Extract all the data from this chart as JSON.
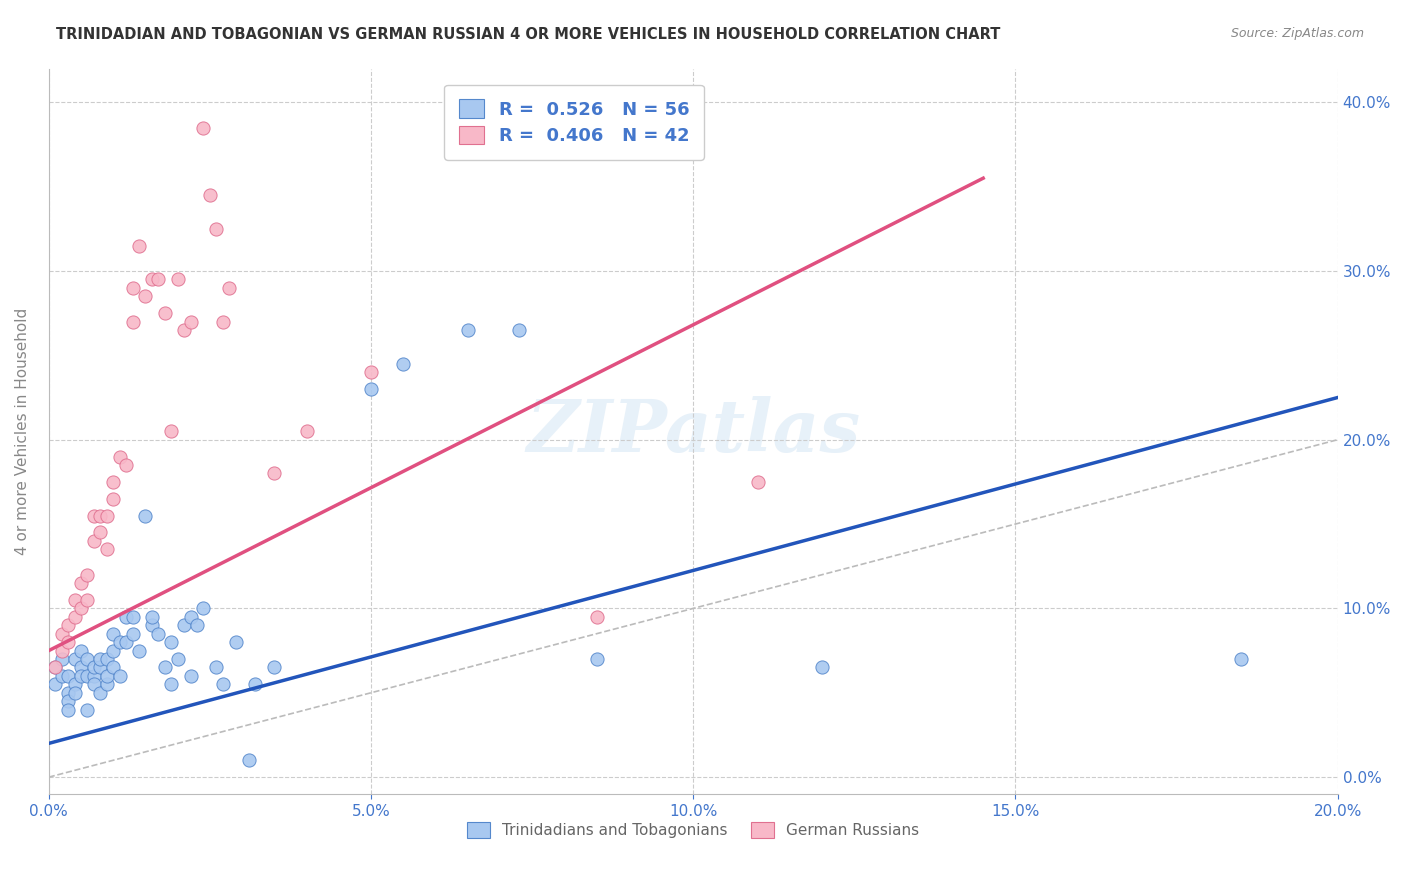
{
  "title": "TRINIDADIAN AND TOBAGONIAN VS GERMAN RUSSIAN 4 OR MORE VEHICLES IN HOUSEHOLD CORRELATION CHART",
  "source": "Source: ZipAtlas.com",
  "ylabel": "4 or more Vehicles in Household",
  "legend_blue_label": "Trinidadians and Tobagonians",
  "legend_pink_label": "German Russians",
  "xlim": [
    0.0,
    0.2
  ],
  "ylim": [
    -0.01,
    0.42
  ],
  "xticks": [
    0.0,
    0.05,
    0.1,
    0.15,
    0.2
  ],
  "yticks": [
    0.0,
    0.1,
    0.2,
    0.3,
    0.4
  ],
  "blue_scatter_color": "#a8c8f0",
  "blue_edge_color": "#5588cc",
  "pink_scatter_color": "#f8b8c8",
  "pink_edge_color": "#e07090",
  "blue_line_color": "#2255bb",
  "pink_line_color": "#e05080",
  "ref_line_color": "#bbbbbb",
  "blue_scatter": [
    [
      0.001,
      0.065
    ],
    [
      0.001,
      0.055
    ],
    [
      0.002,
      0.07
    ],
    [
      0.002,
      0.06
    ],
    [
      0.003,
      0.06
    ],
    [
      0.003,
      0.05
    ],
    [
      0.003,
      0.045
    ],
    [
      0.003,
      0.04
    ],
    [
      0.004,
      0.07
    ],
    [
      0.004,
      0.055
    ],
    [
      0.004,
      0.05
    ],
    [
      0.005,
      0.065
    ],
    [
      0.005,
      0.075
    ],
    [
      0.005,
      0.06
    ],
    [
      0.006,
      0.04
    ],
    [
      0.006,
      0.07
    ],
    [
      0.006,
      0.06
    ],
    [
      0.007,
      0.06
    ],
    [
      0.007,
      0.055
    ],
    [
      0.007,
      0.065
    ],
    [
      0.008,
      0.05
    ],
    [
      0.008,
      0.065
    ],
    [
      0.008,
      0.07
    ],
    [
      0.009,
      0.055
    ],
    [
      0.009,
      0.07
    ],
    [
      0.009,
      0.06
    ],
    [
      0.01,
      0.065
    ],
    [
      0.01,
      0.085
    ],
    [
      0.01,
      0.075
    ],
    [
      0.011,
      0.06
    ],
    [
      0.011,
      0.08
    ],
    [
      0.012,
      0.095
    ],
    [
      0.012,
      0.08
    ],
    [
      0.013,
      0.095
    ],
    [
      0.013,
      0.085
    ],
    [
      0.014,
      0.075
    ],
    [
      0.015,
      0.155
    ],
    [
      0.016,
      0.09
    ],
    [
      0.016,
      0.095
    ],
    [
      0.017,
      0.085
    ],
    [
      0.018,
      0.065
    ],
    [
      0.019,
      0.08
    ],
    [
      0.019,
      0.055
    ],
    [
      0.02,
      0.07
    ],
    [
      0.021,
      0.09
    ],
    [
      0.022,
      0.06
    ],
    [
      0.022,
      0.095
    ],
    [
      0.023,
      0.09
    ],
    [
      0.024,
      0.1
    ],
    [
      0.026,
      0.065
    ],
    [
      0.027,
      0.055
    ],
    [
      0.029,
      0.08
    ],
    [
      0.031,
      0.01
    ],
    [
      0.032,
      0.055
    ],
    [
      0.035,
      0.065
    ],
    [
      0.05,
      0.23
    ],
    [
      0.055,
      0.245
    ],
    [
      0.065,
      0.265
    ],
    [
      0.073,
      0.265
    ],
    [
      0.085,
      0.07
    ],
    [
      0.12,
      0.065
    ],
    [
      0.185,
      0.07
    ]
  ],
  "pink_scatter": [
    [
      0.001,
      0.065
    ],
    [
      0.002,
      0.075
    ],
    [
      0.002,
      0.085
    ],
    [
      0.003,
      0.08
    ],
    [
      0.003,
      0.09
    ],
    [
      0.004,
      0.095
    ],
    [
      0.004,
      0.105
    ],
    [
      0.005,
      0.1
    ],
    [
      0.005,
      0.115
    ],
    [
      0.006,
      0.105
    ],
    [
      0.006,
      0.12
    ],
    [
      0.007,
      0.155
    ],
    [
      0.007,
      0.14
    ],
    [
      0.008,
      0.145
    ],
    [
      0.008,
      0.155
    ],
    [
      0.009,
      0.135
    ],
    [
      0.009,
      0.155
    ],
    [
      0.01,
      0.165
    ],
    [
      0.01,
      0.175
    ],
    [
      0.011,
      0.19
    ],
    [
      0.012,
      0.185
    ],
    [
      0.013,
      0.27
    ],
    [
      0.013,
      0.29
    ],
    [
      0.014,
      0.315
    ],
    [
      0.015,
      0.285
    ],
    [
      0.016,
      0.295
    ],
    [
      0.017,
      0.295
    ],
    [
      0.018,
      0.275
    ],
    [
      0.019,
      0.205
    ],
    [
      0.02,
      0.295
    ],
    [
      0.021,
      0.265
    ],
    [
      0.022,
      0.27
    ],
    [
      0.024,
      0.385
    ],
    [
      0.025,
      0.345
    ],
    [
      0.026,
      0.325
    ],
    [
      0.027,
      0.27
    ],
    [
      0.028,
      0.29
    ],
    [
      0.035,
      0.18
    ],
    [
      0.04,
      0.205
    ],
    [
      0.05,
      0.24
    ],
    [
      0.085,
      0.095
    ],
    [
      0.11,
      0.175
    ]
  ],
  "blue_line": [
    [
      0.0,
      0.02
    ],
    [
      0.2,
      0.225
    ]
  ],
  "pink_line": [
    [
      0.0,
      0.075
    ],
    [
      0.145,
      0.355
    ]
  ],
  "ref_line": [
    [
      0.0,
      0.0
    ],
    [
      0.2,
      0.2
    ]
  ]
}
